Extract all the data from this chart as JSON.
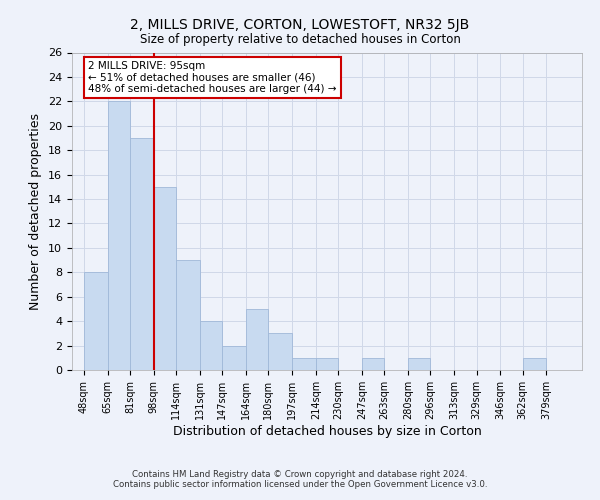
{
  "title": "2, MILLS DRIVE, CORTON, LOWESTOFT, NR32 5JB",
  "subtitle": "Size of property relative to detached houses in Corton",
  "xlabel": "Distribution of detached houses by size in Corton",
  "ylabel": "Number of detached properties",
  "footer_line1": "Contains HM Land Registry data © Crown copyright and database right 2024.",
  "footer_line2": "Contains public sector information licensed under the Open Government Licence v3.0.",
  "bin_labels": [
    "48sqm",
    "65sqm",
    "81sqm",
    "98sqm",
    "114sqm",
    "131sqm",
    "147sqm",
    "164sqm",
    "180sqm",
    "197sqm",
    "214sqm",
    "230sqm",
    "247sqm",
    "263sqm",
    "280sqm",
    "296sqm",
    "313sqm",
    "329sqm",
    "346sqm",
    "362sqm",
    "379sqm"
  ],
  "bar_values": [
    8,
    22,
    19,
    15,
    9,
    4,
    2,
    5,
    3,
    1,
    1,
    0,
    1,
    0,
    1,
    0,
    0,
    0,
    0,
    1,
    0
  ],
  "bar_color": "#c8daf0",
  "bar_edge_color": "#a0b8d8",
  "highlight_line_color": "#cc0000",
  "annotation_title": "2 MILLS DRIVE: 95sqm",
  "annotation_line1": "← 51% of detached houses are smaller (46)",
  "annotation_line2": "48% of semi-detached houses are larger (44) →",
  "annotation_box_color": "#ffffff",
  "annotation_box_edge_color": "#cc0000",
  "ylim": [
    0,
    26
  ],
  "yticks": [
    0,
    2,
    4,
    6,
    8,
    10,
    12,
    14,
    16,
    18,
    20,
    22,
    24,
    26
  ],
  "bin_edges": [
    48,
    65,
    81,
    98,
    114,
    131,
    147,
    164,
    180,
    197,
    214,
    230,
    247,
    263,
    280,
    296,
    313,
    329,
    346,
    362,
    379,
    396
  ],
  "grid_color": "#d0d8e8",
  "background_color": "#eef2fa"
}
